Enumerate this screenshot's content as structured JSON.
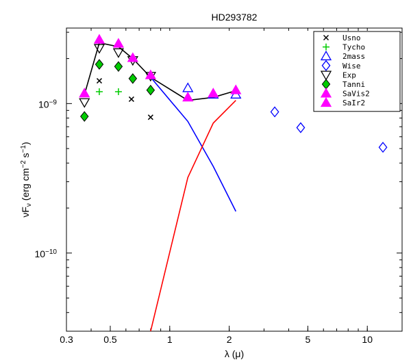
{
  "chart_data": {
    "type": "scatter",
    "title": "HD293782",
    "xlabel": "λ (μ)",
    "ylabel_main": "νF",
    "ylabel_sub": "ν",
    "ylabel_units_prefix": " (erg cm",
    "ylabel_units_exp1": "−2",
    "ylabel_units_mid": " s",
    "ylabel_units_exp2": "−1",
    "ylabel_units_suffix": ")",
    "xscale": "log",
    "yscale": "log",
    "xlim": [
      0.3,
      15
    ],
    "ylim": [
      3e-11,
      3.2e-09
    ],
    "xticks": [
      {
        "value": 0.3,
        "label": "0.3"
      },
      {
        "value": 0.5,
        "label": "0.5"
      },
      {
        "value": 1,
        "label": "1"
      },
      {
        "value": 2,
        "label": "2"
      },
      {
        "value": 5,
        "label": "5"
      },
      {
        "value": 10,
        "label": "10"
      }
    ],
    "yticks": [
      {
        "value": 1e-10,
        "base": "10",
        "exp": "−10"
      },
      {
        "value": 1e-09,
        "base": "10",
        "exp": "−9"
      }
    ],
    "legend_position": "top-right",
    "series": [
      {
        "name": "Usno",
        "marker": "x",
        "color": "#000000",
        "x": [
          0.44,
          0.64,
          0.8
        ],
        "y": [
          1.42e-09,
          1.07e-09,
          8.1e-10
        ]
      },
      {
        "name": "Tycho",
        "marker": "plus",
        "color": "#00cc00",
        "x": [
          0.44,
          0.55
        ],
        "y": [
          1.2e-09,
          1.2e-09
        ]
      },
      {
        "name": "2mass",
        "marker": "triangle-up",
        "color": "#0000ff",
        "x": [
          1.235,
          1.66,
          2.16
        ],
        "y": [
          1.27e-09,
          1.15e-09,
          1.15e-09
        ]
      },
      {
        "name": "Wise",
        "marker": "diamond",
        "color": "#0000ff",
        "x": [
          3.4,
          4.6,
          12.0
        ],
        "y": [
          8.8e-10,
          6.9e-10,
          5.1e-10
        ]
      },
      {
        "name": "Exp",
        "marker": "triangle-down",
        "color": "#000000",
        "x": [
          0.37,
          0.44,
          0.55,
          0.65,
          0.8
        ],
        "y": [
          1.02e-09,
          2.35e-09,
          2.2e-09,
          1.95e-09,
          1.53e-09
        ]
      },
      {
        "name": "Tanni",
        "marker": "diamond-filled",
        "color": "#00cc00",
        "x": [
          0.37,
          0.44,
          0.55,
          0.65,
          0.8
        ],
        "y": [
          8.2e-10,
          1.83e-09,
          1.77e-09,
          1.47e-09,
          1.23e-09
        ]
      },
      {
        "name": "SaVis2",
        "marker": "triangle-up-filled",
        "color": "#ff00ff",
        "x": [
          0.37,
          0.44,
          0.55,
          0.65,
          0.8
        ],
        "y": [
          1.17e-09,
          2.68e-09,
          2.52e-09,
          2.02e-09,
          1.55e-09
        ]
      },
      {
        "name": "SaIr2",
        "marker": "triangle-up-filled",
        "color": "#ff00ff",
        "x": [
          1.235,
          1.66,
          2.16
        ],
        "y": [
          1.1e-09,
          1.17e-09,
          1.23e-09
        ]
      }
    ],
    "lines": [
      {
        "color": "#000000",
        "x": [
          0.37,
          0.44,
          0.55,
          0.65,
          0.8,
          1.235,
          1.66,
          2.16
        ],
        "y": [
          1.15e-09,
          2.55e-09,
          2.4e-09,
          2e-09,
          1.5e-09,
          1.05e-09,
          1.1e-09,
          1.22e-09
        ]
      },
      {
        "color": "#0000ff",
        "x": [
          0.8,
          1.235,
          1.66,
          2.16
        ],
        "y": [
          1.5e-09,
          7.6e-10,
          3.8e-10,
          1.9e-10
        ]
      },
      {
        "color": "#ff0000",
        "x": [
          0.8,
          1.235,
          1.66,
          2.16
        ],
        "y": [
          3e-11,
          3.2e-10,
          7.4e-10,
          1.05e-09
        ]
      }
    ]
  }
}
